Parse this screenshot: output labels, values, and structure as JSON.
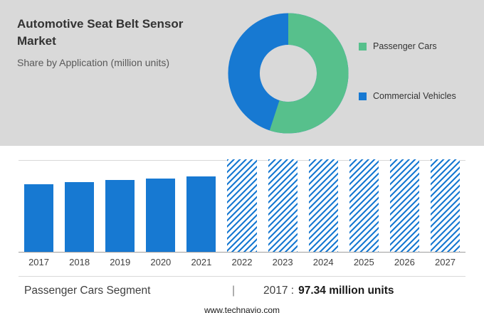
{
  "header": {
    "title": "Automotive Seat Belt Sensor Market",
    "subtitle": "Share by Application (million units)"
  },
  "legend": {
    "items": [
      {
        "label": "Passenger Cars",
        "color": "#57c08c"
      },
      {
        "label": "Commercial Vehicles",
        "color": "#1779d2"
      }
    ]
  },
  "chart_data": [
    {
      "type": "pie",
      "subtype": "donut",
      "title": "Automotive Seat Belt Sensor Market - Share by Application (million units)",
      "legend_position": "right",
      "segments": [
        {
          "label": "Passenger Cars",
          "value": 55,
          "color": "#57c08c"
        },
        {
          "label": "Commercial Vehicles",
          "value": 45,
          "color": "#1779d2"
        }
      ]
    },
    {
      "type": "bar",
      "categories": [
        "2017",
        "2018",
        "2019",
        "2020",
        "2021",
        "2022",
        "2023",
        "2024",
        "2025",
        "2026",
        "2027"
      ],
      "series": [
        {
          "name": "Passenger Cars (million units)",
          "color": "#1779d2",
          "values": [
            97.34,
            100.4,
            103.4,
            105.6,
            108.7,
            null,
            null,
            null,
            null,
            null,
            null
          ]
        }
      ],
      "forecast_categories": [
        "2022",
        "2023",
        "2024",
        "2025",
        "2026",
        "2027"
      ],
      "forecast_style": "hatched-full-height",
      "ylim": [
        0,
        133
      ],
      "grid": false,
      "xlabel": "",
      "ylabel": ""
    }
  ],
  "caption": {
    "segment": "Passenger Cars Segment",
    "divider": "|",
    "year_prefix": "2017 :",
    "value_bold": "97.34 million units"
  },
  "footer": {
    "url": "www.technavio.com"
  }
}
